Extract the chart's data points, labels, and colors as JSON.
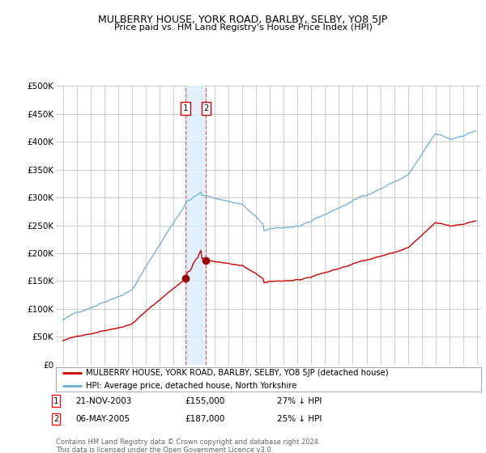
{
  "title": "MULBERRY HOUSE, YORK ROAD, BARLBY, SELBY, YO8 5JP",
  "subtitle": "Price paid vs. HM Land Registry's House Price Index (HPI)",
  "legend_line1": "MULBERRY HOUSE, YORK ROAD, BARLBY, SELBY, YO8 5JP (detached house)",
  "legend_line2": "HPI: Average price, detached house, North Yorkshire",
  "footer1": "Contains HM Land Registry data © Crown copyright and database right 2024.",
  "footer2": "This data is licensed under the Open Government Licence v3.0.",
  "transaction1_date": "21-NOV-2003",
  "transaction1_price": "£155,000",
  "transaction1_hpi": "27% ↓ HPI",
  "transaction2_date": "06-MAY-2005",
  "transaction2_price": "£187,000",
  "transaction2_hpi": "25% ↓ HPI",
  "ylim": [
    0,
    500000
  ],
  "yticks": [
    0,
    50000,
    100000,
    150000,
    200000,
    250000,
    300000,
    350000,
    400000,
    450000,
    500000
  ],
  "ytick_labels": [
    "£0",
    "£50K",
    "£100K",
    "£150K",
    "£200K",
    "£250K",
    "£300K",
    "£350K",
    "£400K",
    "£450K",
    "£500K"
  ],
  "hpi_color": "#6baed6",
  "price_color": "#cc0000",
  "marker_color": "#990000",
  "vline_color": "#cc0000",
  "shade_color": "#ddeeff",
  "bg_color": "#ffffff",
  "grid_color": "#cccccc",
  "transaction1_x": 2003.9,
  "transaction1_y": 155000,
  "transaction2_x": 2005.37,
  "transaction2_y": 187000,
  "vline1_x": 2003.9,
  "vline2_x": 2005.37,
  "xlim_left": 1994.5,
  "xlim_right": 2025.3
}
